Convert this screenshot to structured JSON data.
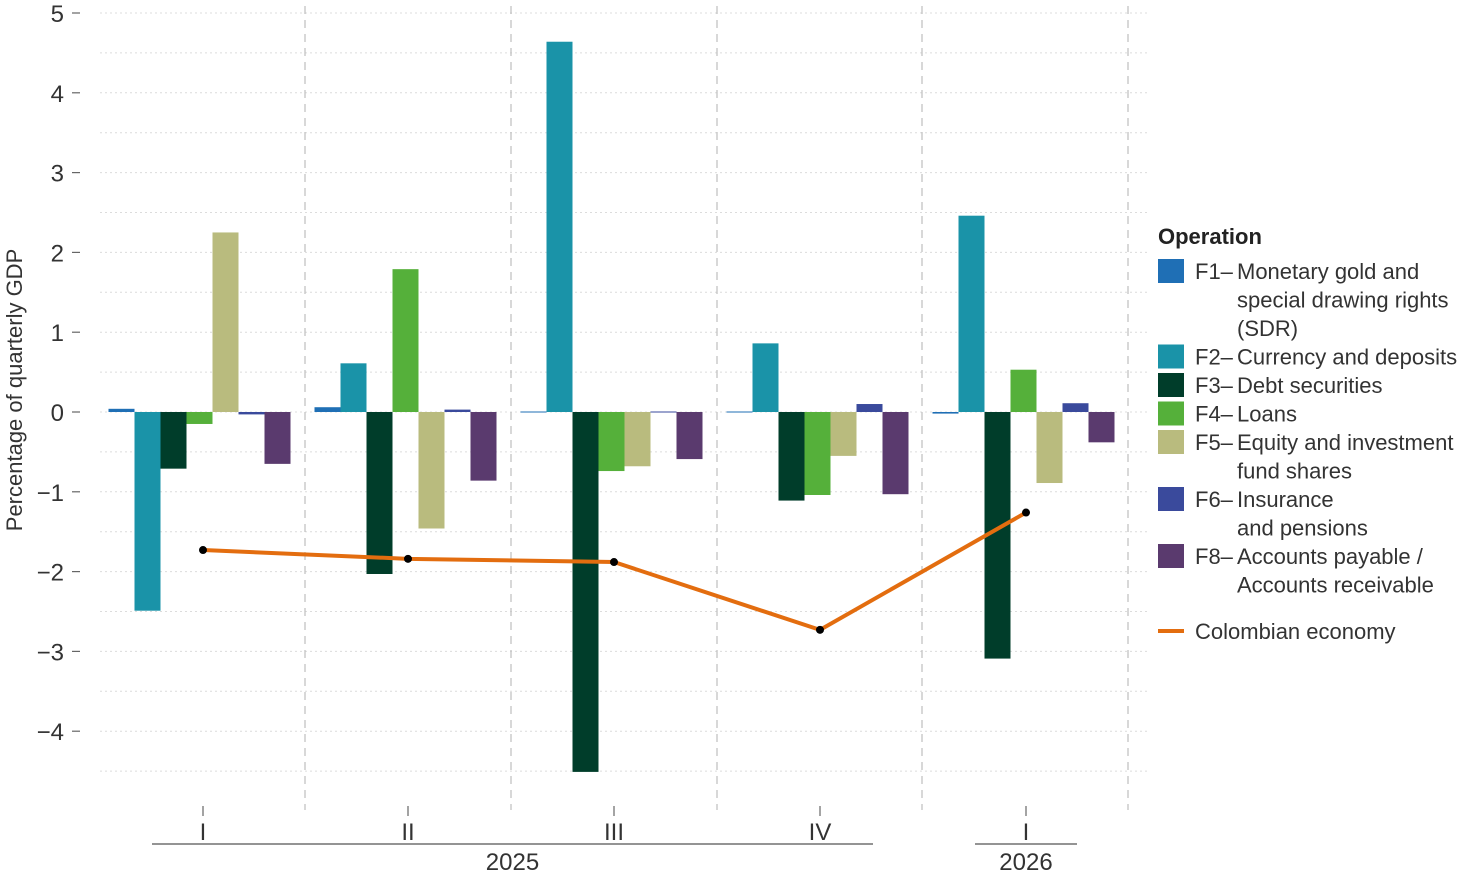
{
  "chart_data": {
    "type": "bar",
    "ylabel": "Percentage of quarterly GDP",
    "ylim": [
      -4.5,
      5
    ],
    "yticks": [
      5,
      4,
      3,
      2,
      1,
      0,
      -1,
      -2,
      -3,
      -4
    ],
    "ytick_labels": [
      "5",
      "4",
      "3",
      "2",
      "1",
      "0",
      "−1",
      "−2",
      "−3",
      "−4"
    ],
    "categories": [
      "I",
      "II",
      "III",
      "IV",
      "I"
    ],
    "years": [
      {
        "label": "2025",
        "quarters": [
          0,
          1,
          2,
          3
        ]
      },
      {
        "label": "2026",
        "quarters": [
          4
        ]
      }
    ],
    "grid": "horizontal dotted, vertical dashed quarter separators",
    "legend_position": "right",
    "legend_title": "Operation",
    "series": [
      {
        "code": "F1",
        "name": "Monetary gold and special drawing rights (SDR)",
        "lines": [
          "Monetary gold and",
          "special drawing rights",
          "(SDR)"
        ],
        "color": "#1f6fb5",
        "values": [
          0.04,
          0.06,
          0.0,
          0.0,
          -0.02
        ]
      },
      {
        "code": "F2",
        "name": "Currency and deposits",
        "lines": [
          "Currency and deposits"
        ],
        "color": "#1a93a8",
        "values": [
          -2.49,
          0.61,
          4.64,
          0.86,
          2.46
        ]
      },
      {
        "code": "F3",
        "name": "Debt securities",
        "lines": [
          "Debt securities"
        ],
        "color": "#003d2a",
        "values": [
          -0.71,
          -2.03,
          -4.51,
          -1.11,
          -3.09
        ]
      },
      {
        "code": "F4",
        "name": "Loans",
        "lines": [
          "Loans"
        ],
        "color": "#55b03a",
        "values": [
          -0.15,
          1.79,
          -0.74,
          -1.04,
          0.53
        ]
      },
      {
        "code": "F5",
        "name": "Equity and investment fund shares",
        "lines": [
          "Equity and investment",
          "fund shares"
        ],
        "color": "#b9bb7e",
        "values": [
          2.25,
          -1.46,
          -0.68,
          -0.55,
          -0.89
        ]
      },
      {
        "code": "F6",
        "name": "Insurance and pensions",
        "lines": [
          "Insurance",
          "and pensions"
        ],
        "color": "#3a4a9c",
        "values": [
          -0.03,
          0.03,
          0.0,
          0.1,
          0.11
        ]
      },
      {
        "code": "F8",
        "name": "Accounts payable / Accounts receivable",
        "lines": [
          "Accounts payable /",
          "Accounts receivable"
        ],
        "color": "#5a3a6e",
        "values": [
          -0.65,
          -0.86,
          -0.59,
          -1.03,
          -0.38
        ]
      }
    ],
    "line_series": {
      "name": "Colombian economy",
      "color": "#e36d0f",
      "values": [
        -1.73,
        -1.84,
        -1.88,
        -2.73,
        -1.26
      ]
    }
  }
}
